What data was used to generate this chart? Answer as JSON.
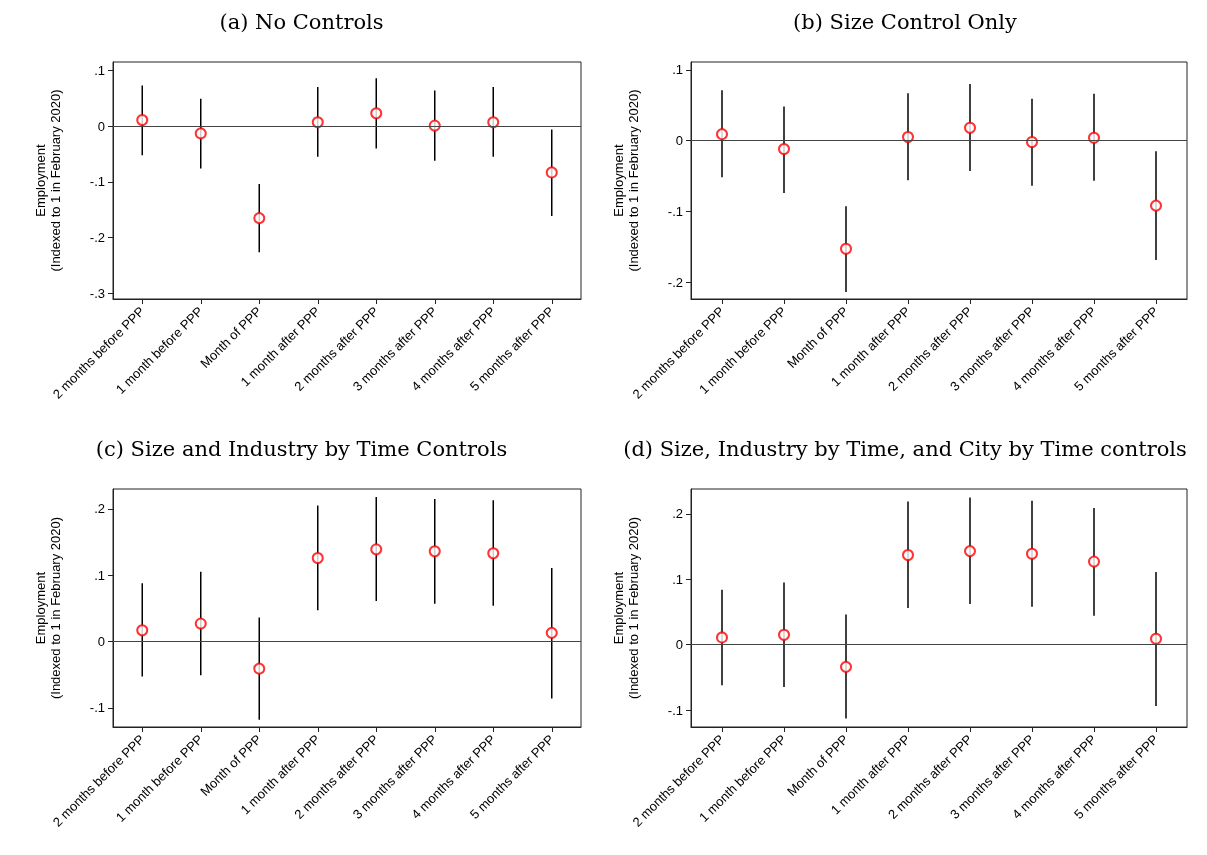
{
  "chart_data": [
    {
      "type": "scatter",
      "title": "(a) No Controls",
      "ylabel": "Employment\n(Indexed to 1 in February 2020)",
      "categories": [
        "2 months before PPP",
        "1 month before PPP",
        "Month of PPP",
        "1 month after PPP",
        "2 months after PPP",
        "3 months after PPP",
        "4 months after PPP",
        "5 months after PPP"
      ],
      "series": [
        {
          "color": "#ff0000",
          "values": [
            0.011,
            -0.013,
            -0.165,
            0.007,
            0.023,
            0.001,
            0.007,
            -0.083
          ],
          "errors": [
            [
              -0.052,
              0.073
            ],
            [
              -0.076,
              0.049
            ],
            [
              -0.226,
              -0.104
            ],
            [
              -0.055,
              0.07
            ],
            [
              -0.04,
              0.086
            ],
            [
              -0.062,
              0.064
            ],
            [
              -0.055,
              0.07
            ],
            [
              -0.161,
              -0.006
            ]
          ]
        }
      ],
      "marker": "circle",
      "ylim": [
        -0.31,
        0.115
      ],
      "yticks": [
        {
          "value": -0.3,
          "label": "-.3"
        },
        {
          "value": -0.2,
          "label": "-.2"
        },
        {
          "value": -0.1,
          "label": "-.1"
        },
        {
          "value": 0,
          "label": "0"
        },
        {
          "value": 0.1,
          "label": ".1"
        }
      ],
      "ref_lines": [
        {
          "axis": "y",
          "value": 0,
          "label": null
        }
      ],
      "grid": false
    },
    {
      "type": "scatter",
      "title": "(b) Size Control Only",
      "ylabel": "Employment\n(Indexed to 1 in February 2020)",
      "categories": [
        "2 months before PPP",
        "1 month before PPP",
        "Month of PPP",
        "1 month after PPP",
        "2 months after PPP",
        "3 months after PPP",
        "4 months after PPP",
        "5 months after PPP"
      ],
      "series": [
        {
          "color": "#ff0000",
          "values": [
            0.009,
            -0.012,
            -0.153,
            0.005,
            0.018,
            -0.002,
            0.004,
            -0.092
          ],
          "errors": [
            [
              -0.052,
              0.071
            ],
            [
              -0.074,
              0.048
            ],
            [
              -0.214,
              -0.093
            ],
            [
              -0.056,
              0.067
            ],
            [
              -0.043,
              0.08
            ],
            [
              -0.064,
              0.059
            ],
            [
              -0.057,
              0.066
            ],
            [
              -0.169,
              -0.015
            ]
          ]
        }
      ],
      "marker": "circle",
      "ylim": [
        -0.224,
        0.111
      ],
      "yticks": [
        {
          "value": -0.2,
          "label": "-.2"
        },
        {
          "value": -0.1,
          "label": "-.1"
        },
        {
          "value": 0,
          "label": "0"
        },
        {
          "value": 0.1,
          "label": ".1"
        }
      ],
      "ref_lines": [
        {
          "axis": "y",
          "value": 0,
          "label": null
        }
      ],
      "grid": false
    },
    {
      "type": "scatter",
      "title": "(c) Size and Industry by Time Controls",
      "ylabel": "Employment\n(Indexed to 1 in February 2020)",
      "categories": [
        "2 months before PPP",
        "1 month before PPP",
        "Month of PPP",
        "1 month after PPP",
        "2 months after PPP",
        "3 months after PPP",
        "4 months after PPP",
        "5 months after PPP"
      ],
      "series": [
        {
          "color": "#ff0000",
          "values": [
            0.017,
            0.027,
            -0.041,
            0.126,
            0.139,
            0.136,
            0.133,
            0.013
          ],
          "errors": [
            [
              -0.053,
              0.088
            ],
            [
              -0.051,
              0.105
            ],
            [
              -0.118,
              0.036
            ],
            [
              0.047,
              0.205
            ],
            [
              0.061,
              0.218
            ],
            [
              0.057,
              0.215
            ],
            [
              0.054,
              0.213
            ],
            [
              -0.086,
              0.111
            ]
          ]
        }
      ],
      "marker": "circle",
      "ylim": [
        -0.129,
        0.23
      ],
      "yticks": [
        {
          "value": -0.1,
          "label": "-.1"
        },
        {
          "value": 0,
          "label": "0"
        },
        {
          "value": 0.1,
          "label": ".1"
        },
        {
          "value": 0.2,
          "label": ".2"
        }
      ],
      "ref_lines": [
        {
          "axis": "y",
          "value": 0,
          "label": null
        }
      ],
      "grid": false
    },
    {
      "type": "scatter",
      "title": "(d) Size, Industry by Time, and City by Time controls",
      "ylabel": "Employment\n(Indexed to 1 in February 2020)",
      "categories": [
        "2 months before PPP",
        "1 month before PPP",
        "Month of PPP",
        "1 month after PPP",
        "2 months after PPP",
        "3 months after PPP",
        "4 months after PPP",
        "5 months after PPP"
      ],
      "series": [
        {
          "color": "#ff0000",
          "values": [
            0.011,
            0.015,
            -0.034,
            0.137,
            0.143,
            0.139,
            0.127,
            0.009
          ],
          "errors": [
            [
              -0.062,
              0.084
            ],
            [
              -0.065,
              0.095
            ],
            [
              -0.113,
              0.046
            ],
            [
              0.056,
              0.219
            ],
            [
              0.062,
              0.225
            ],
            [
              0.058,
              0.22
            ],
            [
              0.044,
              0.209
            ],
            [
              -0.094,
              0.111
            ]
          ]
        }
      ],
      "marker": "circle",
      "ylim": [
        -0.126,
        0.238
      ],
      "yticks": [
        {
          "value": -0.1,
          "label": "-.1"
        },
        {
          "value": 0,
          "label": "0"
        },
        {
          "value": 0.1,
          "label": ".1"
        },
        {
          "value": 0.2,
          "label": ".2"
        }
      ],
      "ref_lines": [
        {
          "axis": "y",
          "value": 0,
          "label": null
        }
      ],
      "grid": false
    }
  ]
}
